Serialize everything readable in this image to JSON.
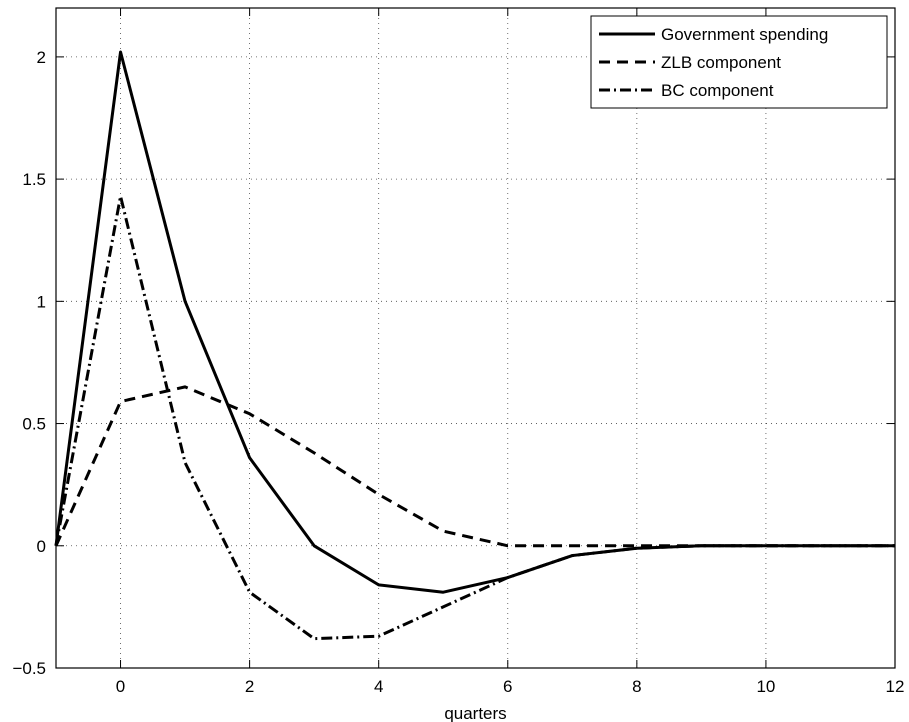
{
  "chart_data": {
    "type": "line",
    "title": "",
    "xlabel": "quarters",
    "ylabel": "",
    "xlim": [
      -1,
      12
    ],
    "ylim": [
      -0.5,
      2.2
    ],
    "xticks": [
      0,
      2,
      4,
      6,
      8,
      10,
      12
    ],
    "xtick_labels": [
      "0",
      "2",
      "4",
      "6",
      "8",
      "10",
      "12"
    ],
    "yticks": [
      -0.5,
      0,
      0.5,
      1,
      1.5,
      2
    ],
    "ytick_labels": [
      "−0.5",
      "0",
      "0.5",
      "1",
      "1.5",
      "2"
    ],
    "grid": true,
    "legend_position": "top-right",
    "x": [
      -1,
      0,
      1,
      2,
      3,
      4,
      5,
      6,
      7,
      8,
      9,
      10,
      11,
      12
    ],
    "series": [
      {
        "name": "Government spending",
        "style": "solid",
        "color": "#000000",
        "values": [
          0,
          2.02,
          1.0,
          0.36,
          0.0,
          -0.16,
          -0.19,
          -0.13,
          -0.04,
          -0.01,
          0.0,
          0.0,
          0.0,
          0.0
        ]
      },
      {
        "name": "ZLB component",
        "style": "dashed",
        "color": "#000000",
        "values": [
          0,
          0.59,
          0.65,
          0.54,
          0.38,
          0.21,
          0.06,
          0.0,
          0.0,
          0.0,
          0.0,
          0.0,
          0.0,
          0.0
        ]
      },
      {
        "name": "BC component",
        "style": "dashdot",
        "color": "#000000",
        "values": [
          0,
          1.43,
          0.34,
          -0.19,
          -0.38,
          -0.37,
          -0.25,
          -0.13,
          -0.04,
          -0.01,
          0.0,
          0.0,
          0.0,
          0.0
        ]
      }
    ]
  }
}
